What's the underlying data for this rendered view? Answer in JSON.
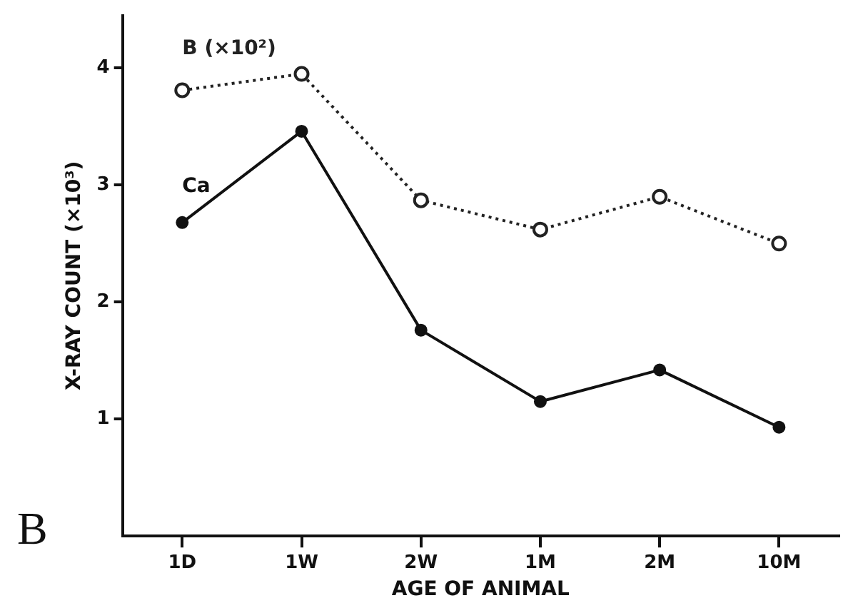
{
  "chart_data": {
    "type": "line",
    "xlabel": "AGE OF ANIMAL",
    "ylabel": "X-RAY COUNT (×10³)",
    "categories": [
      "1D",
      "1W",
      "2W",
      "1M",
      "2M",
      "10M"
    ],
    "series": [
      {
        "name": "B (×10²)",
        "color": "#222222",
        "line_style": "dotted",
        "marker": "circle",
        "values": [
          3.81,
          3.95,
          2.87,
          2.62,
          2.9,
          2.5
        ]
      },
      {
        "name": "Ca",
        "color": "#111111",
        "line_style": "solid",
        "marker": "circle",
        "values": [
          2.68,
          3.46,
          1.76,
          1.15,
          1.42,
          0.93
        ]
      }
    ],
    "ylim": [
      0,
      4.45
    ],
    "yticks": [
      1,
      2,
      3,
      4
    ],
    "grid": false,
    "legend": false,
    "annotations": [
      "B"
    ]
  }
}
